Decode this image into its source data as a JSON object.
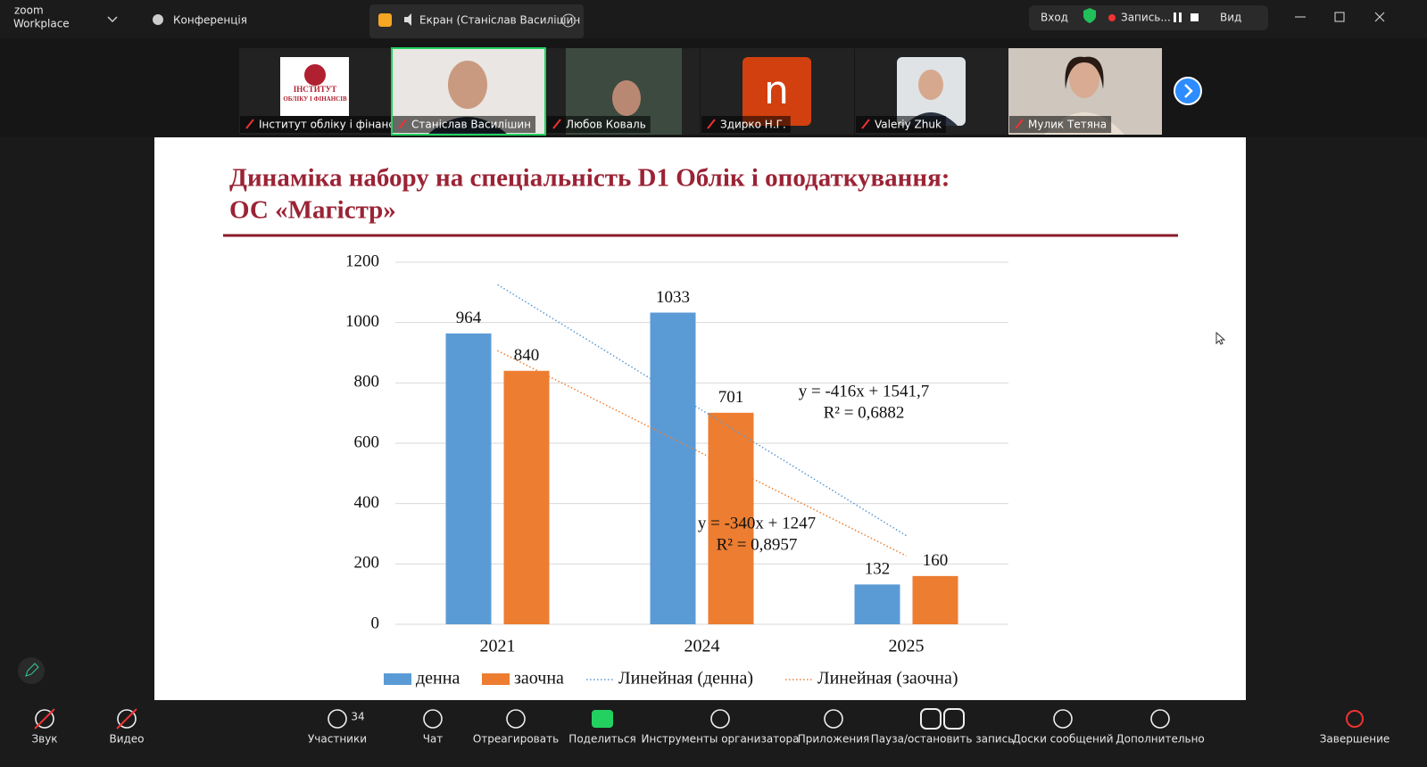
{
  "top_bar": {
    "logo_small": "zoom",
    "logo": "Workplace",
    "meeting": "Конференція",
    "screen_share": "Екран (Станіслав Василішин",
    "sign_in": "Вход",
    "recording": "Запись...",
    "view": "Вид"
  },
  "participants": [
    {
      "name": "Інститут обліку і фінансі...",
      "logo_lines": [
        "ІНСТИТУТ",
        "ОБЛІКУ І ФІНАНСІВ"
      ]
    },
    {
      "name": "Станіслав Василішин"
    },
    {
      "name": "Любов Коваль"
    },
    {
      "name": "Здирко Н.Г.",
      "avatar_letter": "n"
    },
    {
      "name": "Valeriy Zhuk"
    },
    {
      "name": "Мулик Тетяна"
    }
  ],
  "slide": {
    "title_lines": [
      "Динаміка набору на спеціальність D1 Облік і оподаткування:",
      "ОС «Магістр»"
    ]
  },
  "chart_data": {
    "type": "bar",
    "categories": [
      "2021",
      "2024",
      "2025"
    ],
    "series": [
      {
        "name": "денна",
        "color": "#5b9bd5",
        "values": [
          964,
          1033,
          132
        ]
      },
      {
        "name": "заочна",
        "color": "#ed7d31",
        "values": [
          840,
          701,
          160
        ]
      }
    ],
    "trendlines": [
      {
        "name": "Линейная (денна)",
        "color": "#5b9bd5",
        "slope": -416,
        "intercept": 1541.7,
        "equation": "y = -416x + 1541,7",
        "r2": "R² = 0,6882"
      },
      {
        "name": "Линейная (заочна)",
        "color": "#ed7d31",
        "slope": -340,
        "intercept": 1247,
        "equation": "y = -340x + 1247",
        "r2": "R² = 0,8957"
      }
    ],
    "ylim": [
      0,
      1200
    ],
    "yticks": [
      0,
      200,
      400,
      600,
      800,
      1000,
      1200
    ],
    "grid": true,
    "legend": "bottom"
  },
  "toolbar": {
    "participants_count": 34,
    "items": [
      {
        "label": "Звук"
      },
      {
        "label": "Видео"
      },
      {
        "label": "Участники"
      },
      {
        "label": "Чат"
      },
      {
        "label": "Отреагировать"
      },
      {
        "label": "Поделиться"
      },
      {
        "label": "Инструменты организатора"
      },
      {
        "label": "Приложения"
      },
      {
        "label": "Пауза/остановить запись"
      },
      {
        "label": "Доски сообщений"
      },
      {
        "label": "Дополнительно"
      },
      {
        "label": "Завершение"
      }
    ]
  }
}
